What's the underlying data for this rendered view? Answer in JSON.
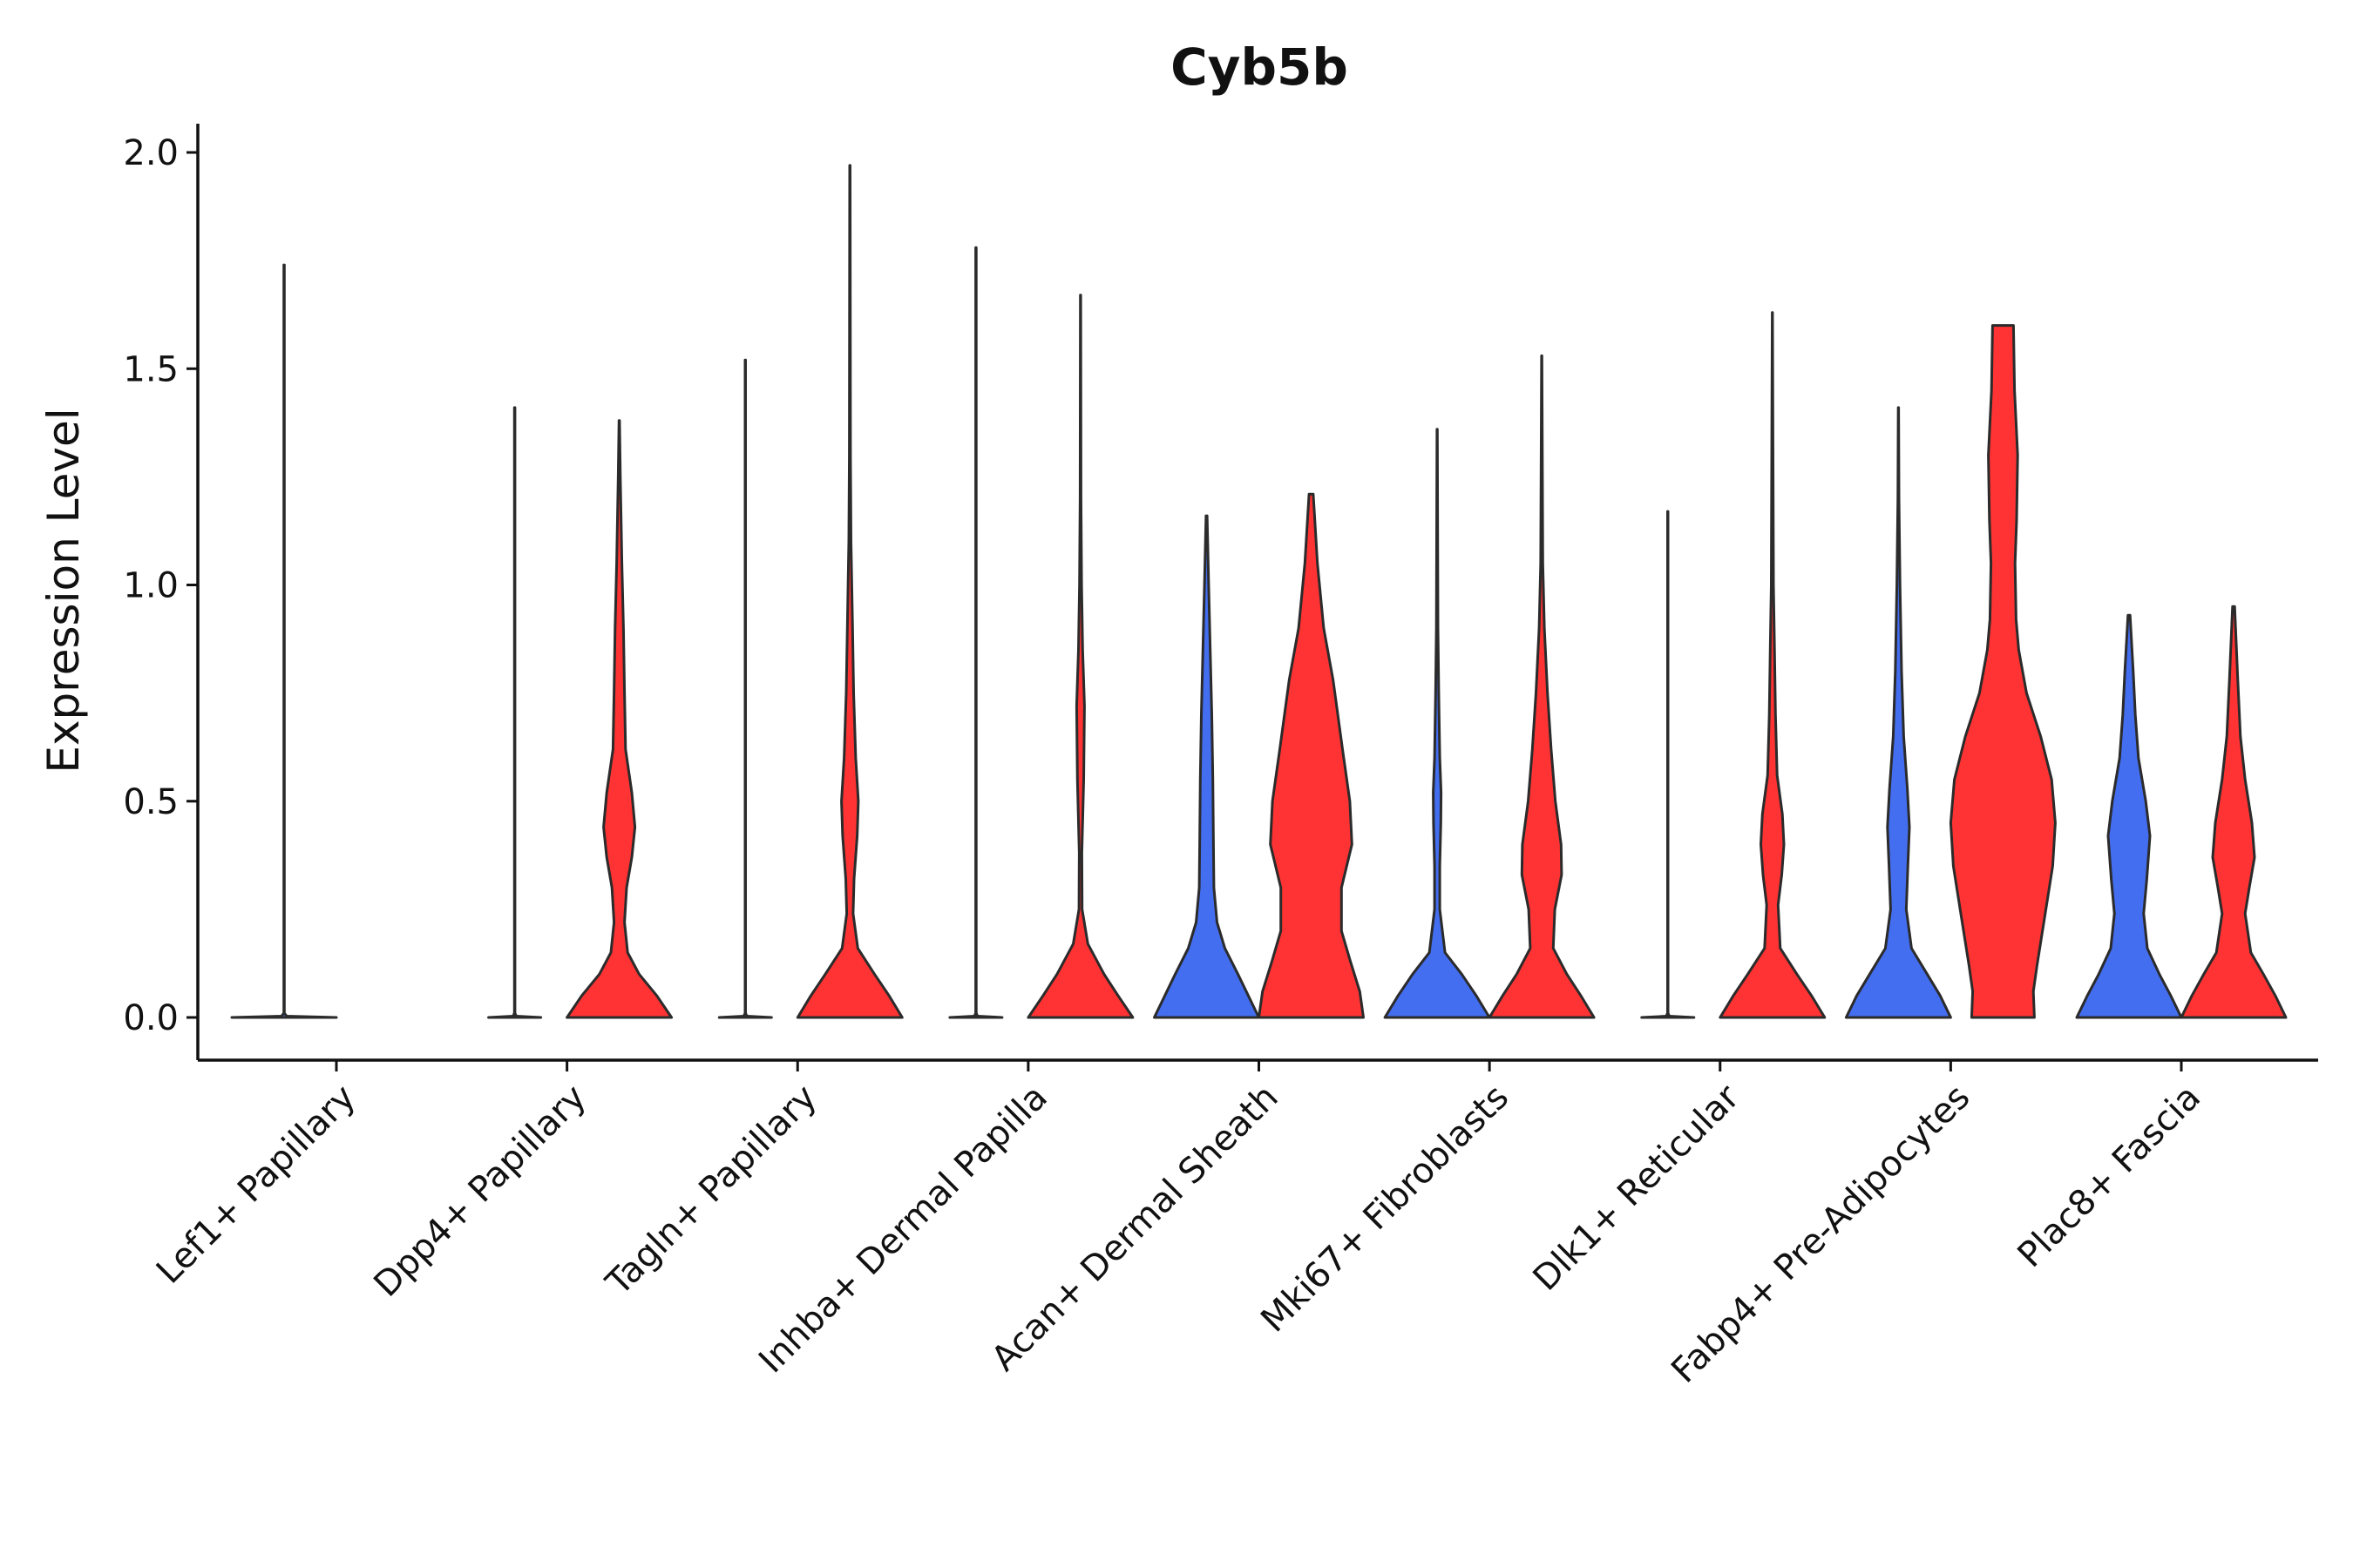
{
  "chart_data": {
    "type": "violin",
    "title": "Cyb5b",
    "xlabel": "",
    "ylabel": "Expression Level",
    "ylim": [
      -0.1,
      2.07
    ],
    "yticks": [
      0.0,
      0.5,
      1.0,
      1.5,
      2.0
    ],
    "ytick_labels": [
      "0.0",
      "0.5",
      "1.0",
      "1.5",
      "2.0"
    ],
    "grid": false,
    "legend": "none",
    "colors": {
      "group_a": "#436ef0",
      "group_b": "#ff3333",
      "outline": "#2b2b2b"
    },
    "categories": [
      "Lef1+ Papillary",
      "Dpp4+ Papillary",
      "Tagln+ Papillary",
      "Inhba+ Dermal Papilla",
      "Acan+ Dermal Sheath",
      "Mki67+ Fibroblasts",
      "Dlk1+ Reticular",
      "Fabp4+ Pre-Adipocytes",
      "Plac8+ Fascia"
    ],
    "violins": [
      {
        "category": "Lef1+ Papillary",
        "group": "a",
        "max": 1.74,
        "profile": [
          [
            0,
            1
          ],
          [
            0.003,
            0.05
          ],
          [
            0.01,
            0.005
          ],
          [
            1.74,
            0.005
          ]
        ]
      },
      {
        "category": "Lef1+ Papillary",
        "group": "b",
        "max": null,
        "profile": []
      },
      {
        "category": "Dpp4+ Papillary",
        "group": "a",
        "max": 1.41,
        "profile": [
          [
            0,
            0.5
          ],
          [
            0.003,
            0.03
          ],
          [
            0.01,
            0.005
          ],
          [
            1.41,
            0.005
          ]
        ]
      },
      {
        "category": "Dpp4+ Papillary",
        "group": "b",
        "max": 1.38,
        "profile": [
          [
            0,
            1
          ],
          [
            0.05,
            0.72
          ],
          [
            0.1,
            0.38
          ],
          [
            0.15,
            0.16
          ],
          [
            0.22,
            0.1
          ],
          [
            0.3,
            0.14
          ],
          [
            0.37,
            0.24
          ],
          [
            0.44,
            0.3
          ],
          [
            0.52,
            0.24
          ],
          [
            0.62,
            0.12
          ],
          [
            0.75,
            0.1
          ],
          [
            0.9,
            0.08
          ],
          [
            1.05,
            0.05
          ],
          [
            1.25,
            0.02
          ],
          [
            1.38,
            0.005
          ]
        ]
      },
      {
        "category": "Tagln+ Papillary",
        "group": "a",
        "max": 1.52,
        "profile": [
          [
            0,
            0.5
          ],
          [
            0.003,
            0.03
          ],
          [
            0.01,
            0.005
          ],
          [
            1.52,
            0.005
          ]
        ]
      },
      {
        "category": "Tagln+ Papillary",
        "group": "b",
        "max": 1.97,
        "profile": [
          [
            0,
            1
          ],
          [
            0.05,
            0.75
          ],
          [
            0.1,
            0.47
          ],
          [
            0.16,
            0.15
          ],
          [
            0.24,
            0.06
          ],
          [
            0.32,
            0.08
          ],
          [
            0.42,
            0.14
          ],
          [
            0.5,
            0.16
          ],
          [
            0.6,
            0.11
          ],
          [
            0.75,
            0.07
          ],
          [
            0.9,
            0.05
          ],
          [
            1.1,
            0.02
          ],
          [
            1.3,
            0.01
          ],
          [
            1.97,
            0.005
          ]
        ]
      },
      {
        "category": "Inhba+ Dermal Papilla",
        "group": "a",
        "max": 1.78,
        "profile": [
          [
            0,
            0.5
          ],
          [
            0.003,
            0.03
          ],
          [
            0.01,
            0.005
          ],
          [
            1.78,
            0.005
          ]
        ]
      },
      {
        "category": "Inhba+ Dermal Papilla",
        "group": "b",
        "max": 1.67,
        "profile": [
          [
            0,
            1
          ],
          [
            0.05,
            0.72
          ],
          [
            0.1,
            0.45
          ],
          [
            0.17,
            0.14
          ],
          [
            0.25,
            0.03
          ],
          [
            0.38,
            0.025
          ],
          [
            0.55,
            0.06
          ],
          [
            0.72,
            0.075
          ],
          [
            0.85,
            0.04
          ],
          [
            1.0,
            0.02
          ],
          [
            1.2,
            0.008
          ],
          [
            1.67,
            0.003
          ]
        ]
      },
      {
        "category": "Acan+ Dermal Sheath",
        "group": "a",
        "max": 1.16,
        "profile": [
          [
            0,
            1
          ],
          [
            0.05,
            0.8
          ],
          [
            0.1,
            0.6
          ],
          [
            0.16,
            0.35
          ],
          [
            0.22,
            0.2
          ],
          [
            0.3,
            0.14
          ],
          [
            0.42,
            0.13
          ],
          [
            0.55,
            0.12
          ],
          [
            0.7,
            0.1
          ],
          [
            0.85,
            0.07
          ],
          [
            1.0,
            0.04
          ],
          [
            1.16,
            0.01
          ]
        ]
      },
      {
        "category": "Acan+ Dermal Sheath",
        "group": "b",
        "max": 1.21,
        "profile": [
          [
            0,
            1
          ],
          [
            0.06,
            0.93
          ],
          [
            0.13,
            0.75
          ],
          [
            0.2,
            0.58
          ],
          [
            0.3,
            0.58
          ],
          [
            0.4,
            0.78
          ],
          [
            0.5,
            0.74
          ],
          [
            0.62,
            0.6
          ],
          [
            0.78,
            0.42
          ],
          [
            0.9,
            0.24
          ],
          [
            1.05,
            0.12
          ],
          [
            1.21,
            0.04
          ]
        ]
      },
      {
        "category": "Mki67+ Fibroblasts",
        "group": "a",
        "max": 1.36,
        "profile": [
          [
            0,
            1
          ],
          [
            0.05,
            0.75
          ],
          [
            0.1,
            0.47
          ],
          [
            0.15,
            0.15
          ],
          [
            0.25,
            0.05
          ],
          [
            0.35,
            0.05
          ],
          [
            0.45,
            0.07
          ],
          [
            0.52,
            0.075
          ],
          [
            0.6,
            0.05
          ],
          [
            0.75,
            0.03
          ],
          [
            0.9,
            0.015
          ],
          [
            1.36,
            0.003
          ]
        ]
      },
      {
        "category": "Mki67+ Fibroblasts",
        "group": "b",
        "max": 1.53,
        "profile": [
          [
            0,
            1
          ],
          [
            0.05,
            0.75
          ],
          [
            0.1,
            0.48
          ],
          [
            0.16,
            0.22
          ],
          [
            0.25,
            0.25
          ],
          [
            0.33,
            0.38
          ],
          [
            0.4,
            0.37
          ],
          [
            0.5,
            0.26
          ],
          [
            0.62,
            0.18
          ],
          [
            0.75,
            0.11
          ],
          [
            0.9,
            0.05
          ],
          [
            1.05,
            0.02
          ],
          [
            1.53,
            0.003
          ]
        ]
      },
      {
        "category": "Dlk1+ Reticular",
        "group": "a",
        "max": 1.17,
        "profile": [
          [
            0,
            0.5
          ],
          [
            0.003,
            0.03
          ],
          [
            0.01,
            0.005
          ],
          [
            1.17,
            0.005
          ]
        ]
      },
      {
        "category": "Dlk1+ Reticular",
        "group": "b",
        "max": 1.63,
        "profile": [
          [
            0,
            1
          ],
          [
            0.05,
            0.75
          ],
          [
            0.1,
            0.47
          ],
          [
            0.16,
            0.15
          ],
          [
            0.26,
            0.11
          ],
          [
            0.33,
            0.18
          ],
          [
            0.4,
            0.22
          ],
          [
            0.47,
            0.19
          ],
          [
            0.56,
            0.09
          ],
          [
            0.7,
            0.06
          ],
          [
            0.85,
            0.04
          ],
          [
            1.0,
            0.02
          ],
          [
            1.63,
            0.003
          ]
        ]
      },
      {
        "category": "Fabp4+ Pre-Adipocytes",
        "group": "a",
        "max": 1.41,
        "profile": [
          [
            0,
            1
          ],
          [
            0.05,
            0.8
          ],
          [
            0.1,
            0.55
          ],
          [
            0.16,
            0.25
          ],
          [
            0.25,
            0.15
          ],
          [
            0.35,
            0.18
          ],
          [
            0.44,
            0.21
          ],
          [
            0.53,
            0.17
          ],
          [
            0.65,
            0.1
          ],
          [
            0.8,
            0.06
          ],
          [
            1.0,
            0.03
          ],
          [
            1.2,
            0.01
          ],
          [
            1.41,
            0.003
          ]
        ]
      },
      {
        "category": "Fabp4+ Pre-Adipocytes",
        "group": "b",
        "max": 1.6,
        "profile": [
          [
            0,
            0.6
          ],
          [
            0.06,
            0.58
          ],
          [
            0.12,
            0.65
          ],
          [
            0.25,
            0.82
          ],
          [
            0.35,
            0.95
          ],
          [
            0.45,
            1
          ],
          [
            0.55,
            0.93
          ],
          [
            0.65,
            0.72
          ],
          [
            0.75,
            0.45
          ],
          [
            0.85,
            0.3
          ],
          [
            0.92,
            0.25
          ],
          [
            1.05,
            0.23
          ],
          [
            1.15,
            0.26
          ],
          [
            1.3,
            0.28
          ],
          [
            1.45,
            0.22
          ],
          [
            1.6,
            0.2
          ]
        ]
      },
      {
        "category": "Plac8+ Fascia",
        "group": "a",
        "max": 0.93,
        "profile": [
          [
            0,
            1
          ],
          [
            0.05,
            0.8
          ],
          [
            0.1,
            0.58
          ],
          [
            0.16,
            0.35
          ],
          [
            0.24,
            0.28
          ],
          [
            0.32,
            0.34
          ],
          [
            0.42,
            0.4
          ],
          [
            0.5,
            0.32
          ],
          [
            0.6,
            0.18
          ],
          [
            0.7,
            0.12
          ],
          [
            0.8,
            0.08
          ],
          [
            0.93,
            0.02
          ]
        ]
      },
      {
        "category": "Plac8+ Fascia",
        "group": "b",
        "max": 0.95,
        "profile": [
          [
            0,
            1
          ],
          [
            0.05,
            0.8
          ],
          [
            0.1,
            0.57
          ],
          [
            0.15,
            0.33
          ],
          [
            0.24,
            0.22
          ],
          [
            0.3,
            0.3
          ],
          [
            0.37,
            0.4
          ],
          [
            0.45,
            0.35
          ],
          [
            0.55,
            0.22
          ],
          [
            0.65,
            0.13
          ],
          [
            0.78,
            0.08
          ],
          [
            0.95,
            0.02
          ]
        ]
      }
    ]
  }
}
